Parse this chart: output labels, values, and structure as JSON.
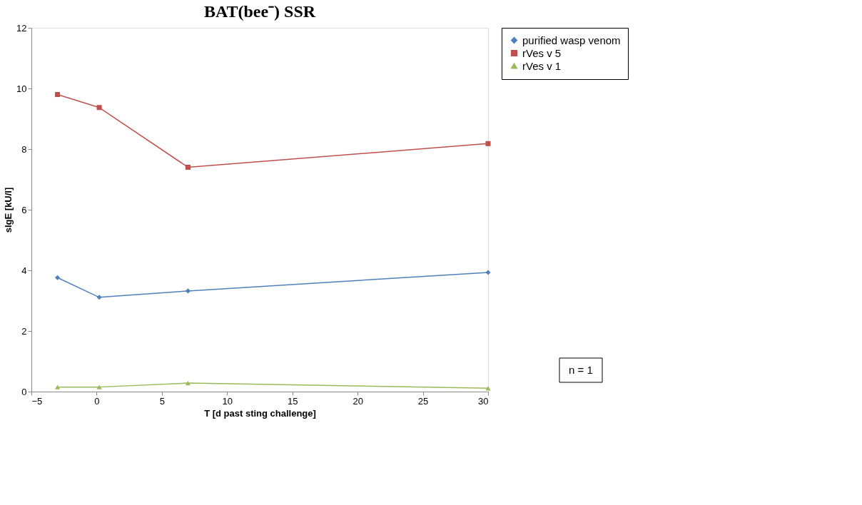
{
  "chart_data": {
    "type": "line",
    "title": "BAT(bee⁻) SSR",
    "xlabel": "T [d past sting challenge]",
    "ylabel": "sIgE [kU/l]",
    "x": [
      -3,
      0.2,
      7,
      30
    ],
    "series": [
      {
        "name": "purified wasp venom",
        "color": "#4f81bd",
        "marker": "diamond",
        "values": [
          3.76,
          3.11,
          3.32,
          3.93
        ]
      },
      {
        "name": "rVes v 5",
        "color": "#c0504d",
        "marker": "square",
        "values": [
          9.8,
          9.37,
          7.4,
          8.18
        ]
      },
      {
        "name": "rVes v 1",
        "color": "#9bbb59",
        "marker": "triangle",
        "values": [
          0.15,
          0.15,
          0.28,
          0.11
        ]
      }
    ],
    "xlim": [
      -5,
      30
    ],
    "xticks": [
      -5,
      0,
      5,
      10,
      15,
      20,
      25,
      30
    ],
    "ylim": [
      0,
      12
    ],
    "yticks": [
      0,
      2,
      4,
      6,
      8,
      10,
      12
    ],
    "grid": false,
    "legend": "right",
    "line_style": "solid",
    "annotations": [
      "n = 1"
    ]
  }
}
